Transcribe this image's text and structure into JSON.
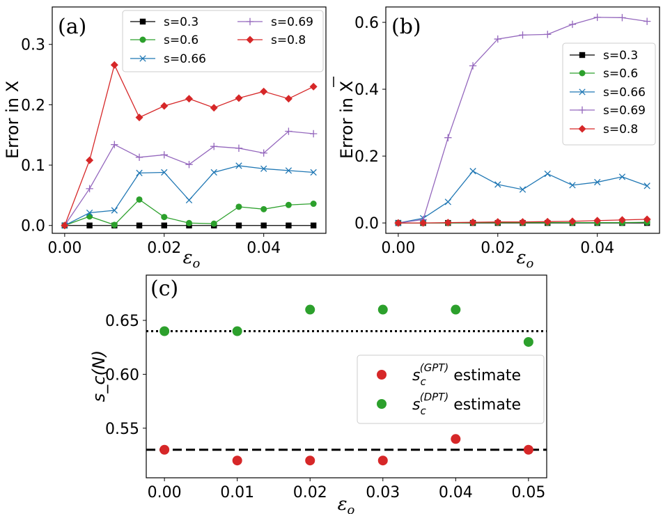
{
  "chart_data": [
    {
      "id": "a",
      "type": "line",
      "panel_label": "(a)",
      "x": [
        0.0,
        0.005,
        0.01,
        0.015,
        0.02,
        0.025,
        0.03,
        0.035,
        0.04,
        0.045,
        0.05
      ],
      "xlabel": "ε",
      "xlabel_sub": "o",
      "ylabel": "Error in X",
      "xlim": [
        -0.0025,
        0.0525
      ],
      "ylim": [
        -0.013,
        0.362
      ],
      "xticks": [
        0.0,
        0.02,
        0.04
      ],
      "xtick_labels": [
        "0.00",
        "0.02",
        "0.04"
      ],
      "yticks": [
        0.0,
        0.1,
        0.2,
        0.3
      ],
      "ytick_labels": [
        "0.0",
        "0.1",
        "0.2",
        "0.3"
      ],
      "legend_position": "top-right",
      "legend_columns": 2,
      "series": [
        {
          "name": "s=0.3",
          "color": "#000000",
          "marker": "square",
          "values": [
            0.0,
            0.0,
            0.0,
            0.0,
            0.0,
            0.0,
            0.0,
            0.0,
            0.0,
            0.0,
            0.0
          ]
        },
        {
          "name": "s=0.6",
          "color": "#2ca02c",
          "marker": "circle",
          "values": [
            0.0,
            0.015,
            0.001,
            0.043,
            0.014,
            0.004,
            0.003,
            0.031,
            0.027,
            0.034,
            0.036
          ]
        },
        {
          "name": "s=0.66",
          "color": "#1f77b4",
          "marker": "x",
          "values": [
            0.0,
            0.021,
            0.025,
            0.087,
            0.088,
            0.042,
            0.088,
            0.099,
            0.094,
            0.091,
            0.088
          ]
        },
        {
          "name": "s=0.69",
          "color": "#9467bd",
          "marker": "plus",
          "values": [
            0.0,
            0.061,
            0.134,
            0.113,
            0.117,
            0.101,
            0.131,
            0.128,
            0.12,
            0.156,
            0.152
          ]
        },
        {
          "name": "s=0.8",
          "color": "#d62728",
          "marker": "diamond",
          "values": [
            0.0,
            0.108,
            0.266,
            0.179,
            0.198,
            0.21,
            0.195,
            0.211,
            0.222,
            0.21,
            0.23
          ]
        }
      ]
    },
    {
      "id": "b",
      "type": "line",
      "panel_label": "(b)",
      "x": [
        0.0,
        0.005,
        0.01,
        0.015,
        0.02,
        0.025,
        0.03,
        0.035,
        0.04,
        0.045,
        0.05
      ],
      "xlabel": "ε",
      "xlabel_sub": "o",
      "ylabel": "Error in X",
      "xlim": [
        -0.0025,
        0.0525
      ],
      "ylim": [
        -0.031,
        0.646
      ],
      "xticks": [
        0.0,
        0.02,
        0.04
      ],
      "xtick_labels": [
        "0.00",
        "0.02",
        "0.04"
      ],
      "yticks": [
        0.0,
        0.2,
        0.4,
        0.6
      ],
      "ytick_labels": [
        "0.0",
        "0.2",
        "0.4",
        "0.6"
      ],
      "legend_position": "center-right",
      "legend_columns": 1,
      "series": [
        {
          "name": "s=0.3",
          "color": "#000000",
          "marker": "square",
          "values": [
            0.0,
            0.0,
            0.0,
            0.0,
            0.0,
            0.0,
            0.0,
            0.0,
            0.0,
            0.0,
            0.0
          ]
        },
        {
          "name": "s=0.6",
          "color": "#2ca02c",
          "marker": "circle",
          "values": [
            0.0,
            0.0,
            0.0,
            0.001,
            0.001,
            0.001,
            0.001,
            0.001,
            0.001,
            0.001,
            0.002
          ]
        },
        {
          "name": "s=0.66",
          "color": "#1f77b4",
          "marker": "x",
          "values": [
            0.0,
            0.014,
            0.063,
            0.155,
            0.115,
            0.1,
            0.147,
            0.113,
            0.122,
            0.138,
            0.111
          ]
        },
        {
          "name": "s=0.69",
          "color": "#9467bd",
          "marker": "plus",
          "values": [
            0.0,
            0.01,
            0.255,
            0.47,
            0.55,
            0.562,
            0.564,
            0.594,
            0.615,
            0.614,
            0.603
          ]
        },
        {
          "name": "s=0.8",
          "color": "#d62728",
          "marker": "diamond",
          "values": [
            0.0,
            0.0,
            0.001,
            0.002,
            0.003,
            0.003,
            0.004,
            0.005,
            0.007,
            0.009,
            0.011
          ]
        }
      ]
    },
    {
      "id": "c",
      "type": "scatter",
      "panel_label": "(c)",
      "xlabel": "ε",
      "xlabel_sub": "o",
      "ylabel": "s_c(N)",
      "xlim": [
        -0.0025,
        0.0525
      ],
      "ylim": [
        0.504,
        0.692
      ],
      "xticks": [
        0.0,
        0.01,
        0.02,
        0.03,
        0.04,
        0.05
      ],
      "xtick_labels": [
        "0.00",
        "0.01",
        "0.02",
        "0.03",
        "0.04",
        "0.05"
      ],
      "yticks": [
        0.55,
        0.6,
        0.65
      ],
      "ytick_labels": [
        "0.55",
        "0.60",
        "0.65"
      ],
      "legend_position": "center-right",
      "hlines": [
        {
          "name": "DPT reference",
          "y": 0.64,
          "style": "dotted",
          "color": "#000000"
        },
        {
          "name": "GPT reference",
          "y": 0.53,
          "style": "dashed",
          "color": "#000000"
        }
      ],
      "series": [
        {
          "name": "s_c^(GPT) estimate",
          "legend_base": "s",
          "legend_sub": "c",
          "legend_sup": "(GPT)",
          "legend_suffix": "estimate",
          "color": "#d62728",
          "x": [
            0.0,
            0.01,
            0.02,
            0.03,
            0.04,
            0.05
          ],
          "values": [
            0.53,
            0.52,
            0.52,
            0.52,
            0.54,
            0.53
          ]
        },
        {
          "name": "s_c^(DPT) estimate",
          "legend_base": "s",
          "legend_sub": "c",
          "legend_sup": "(DPT)",
          "legend_suffix": "estimate",
          "color": "#2ca02c",
          "x": [
            0.0,
            0.01,
            0.02,
            0.03,
            0.04,
            0.05
          ],
          "values": [
            0.64,
            0.64,
            0.66,
            0.66,
            0.66,
            0.63
          ]
        }
      ]
    }
  ]
}
